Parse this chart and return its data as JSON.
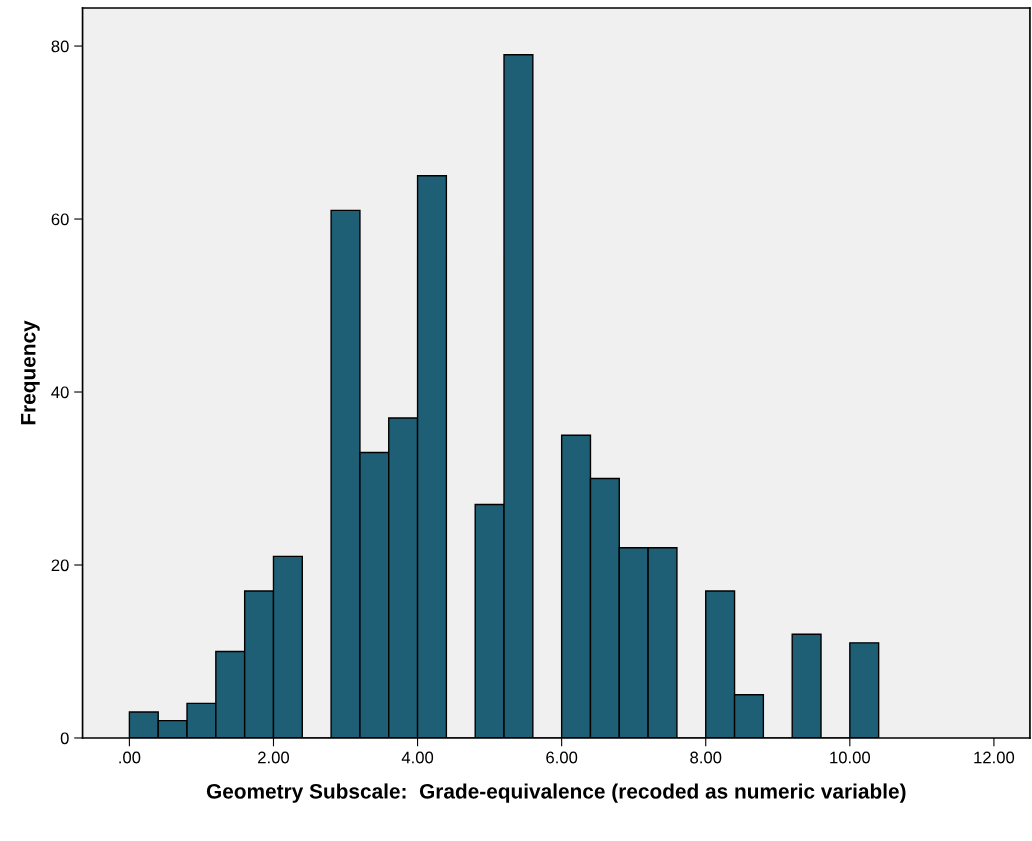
{
  "chart_data": {
    "type": "histogram",
    "xlabel": "Geometry Subscale:  Grade-equivalence (recoded as numeric variable)",
    "ylabel": "Frequency",
    "bins": [
      0.0,
      0.4,
      0.8,
      1.2,
      1.6,
      2.0,
      2.4,
      2.8,
      3.2,
      3.6,
      4.0,
      4.4,
      4.8,
      5.2,
      5.6,
      6.0,
      6.4,
      6.8,
      7.2,
      7.6,
      8.0,
      8.4,
      8.8,
      9.2,
      9.6,
      10.0,
      10.4
    ],
    "values": [
      3,
      2,
      4,
      10,
      17,
      21,
      0,
      61,
      33,
      37,
      65,
      0,
      27,
      79,
      0,
      35,
      30,
      22,
      22,
      0,
      17,
      5,
      0,
      12,
      0,
      11
    ],
    "color": "#1f5f75",
    "xlim": [
      -0.65,
      12.5
    ],
    "ylim": [
      0,
      84.4
    ],
    "xticks": [
      {
        "value": 0,
        "label": ".00"
      },
      {
        "value": 2,
        "label": "2.00"
      },
      {
        "value": 4,
        "label": "4.00"
      },
      {
        "value": 6,
        "label": "6.00"
      },
      {
        "value": 8,
        "label": "8.00"
      },
      {
        "value": 10,
        "label": "10.00"
      },
      {
        "value": 12,
        "label": "12.00"
      }
    ],
    "yticks": [
      0,
      20,
      40,
      60,
      80
    ],
    "grid": false
  }
}
